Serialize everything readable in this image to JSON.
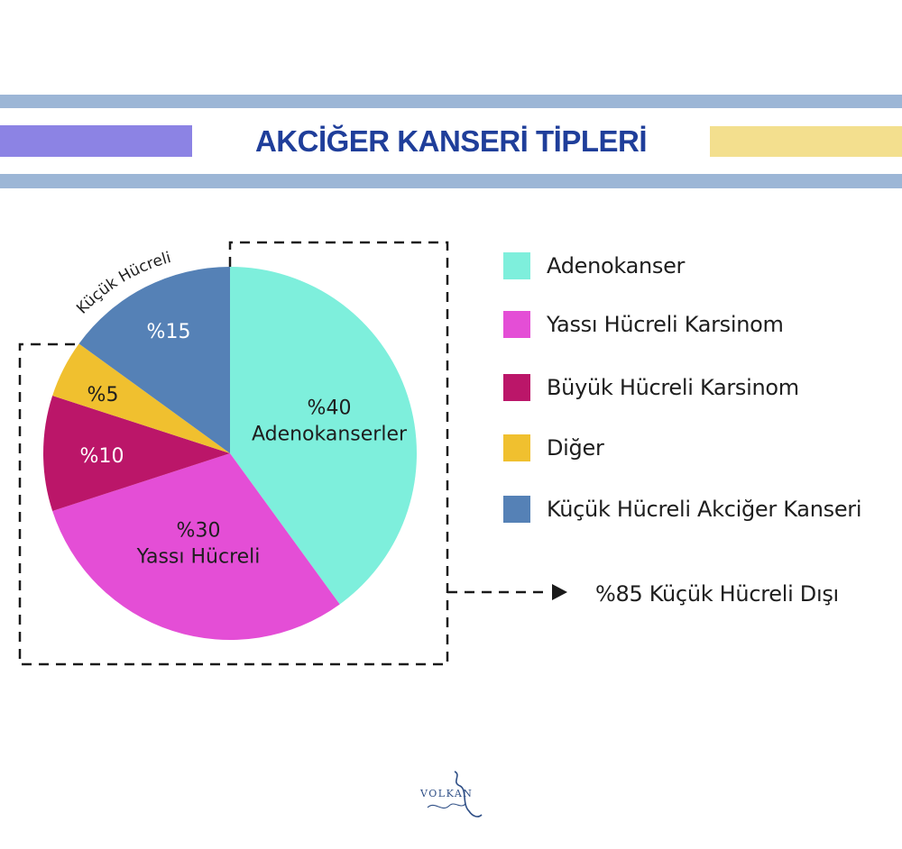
{
  "header": {
    "title": "AKCİĞER KANSERİ TİPLERİ",
    "band_color": "#9cb6d6",
    "left_accent_color": "#8c83e4",
    "right_accent_color": "#f3df8e",
    "title_color": "#1f3e9a"
  },
  "chart_data": {
    "type": "pie",
    "start_angle_deg": 0,
    "direction": "clockwise",
    "slices": [
      {
        "legend": "Adenokanser",
        "value": 40,
        "label_lines": [
          "%40",
          "Adenokanserler"
        ],
        "color": "#7eefdc"
      },
      {
        "legend": "Yassı Hücreli Karsinom",
        "value": 30,
        "label_lines": [
          "%30",
          "Yassı Hücreli"
        ],
        "color": "#e44ed6"
      },
      {
        "legend": "Büyük Hücreli Karsinom",
        "value": 10,
        "label_lines": [
          "%10"
        ],
        "color": "#bb1669",
        "label_color": "#ffffff"
      },
      {
        "legend": "Diğer",
        "value": 5,
        "label_lines": [
          "%5"
        ],
        "color": "#f0c02f"
      },
      {
        "legend": "Küçük Hücreli Akciğer Kanseri",
        "value": 15,
        "label_lines": [
          "%15"
        ],
        "color": "#5581b6",
        "label_color": "#ffffff"
      }
    ],
    "outer_label": "Küçük Hücreli",
    "legend_position": "right",
    "bracket_label": "%85 Küçük Hücreli Dışı",
    "bracket_covers": [
      "Adenokanser",
      "Yassı Hücreli Karsinom",
      "Büyük Hücreli Karsinom",
      "Diğer"
    ]
  },
  "logo": {
    "text": "VOLKAN",
    "icon": "doctor-signature-logo-icon"
  }
}
